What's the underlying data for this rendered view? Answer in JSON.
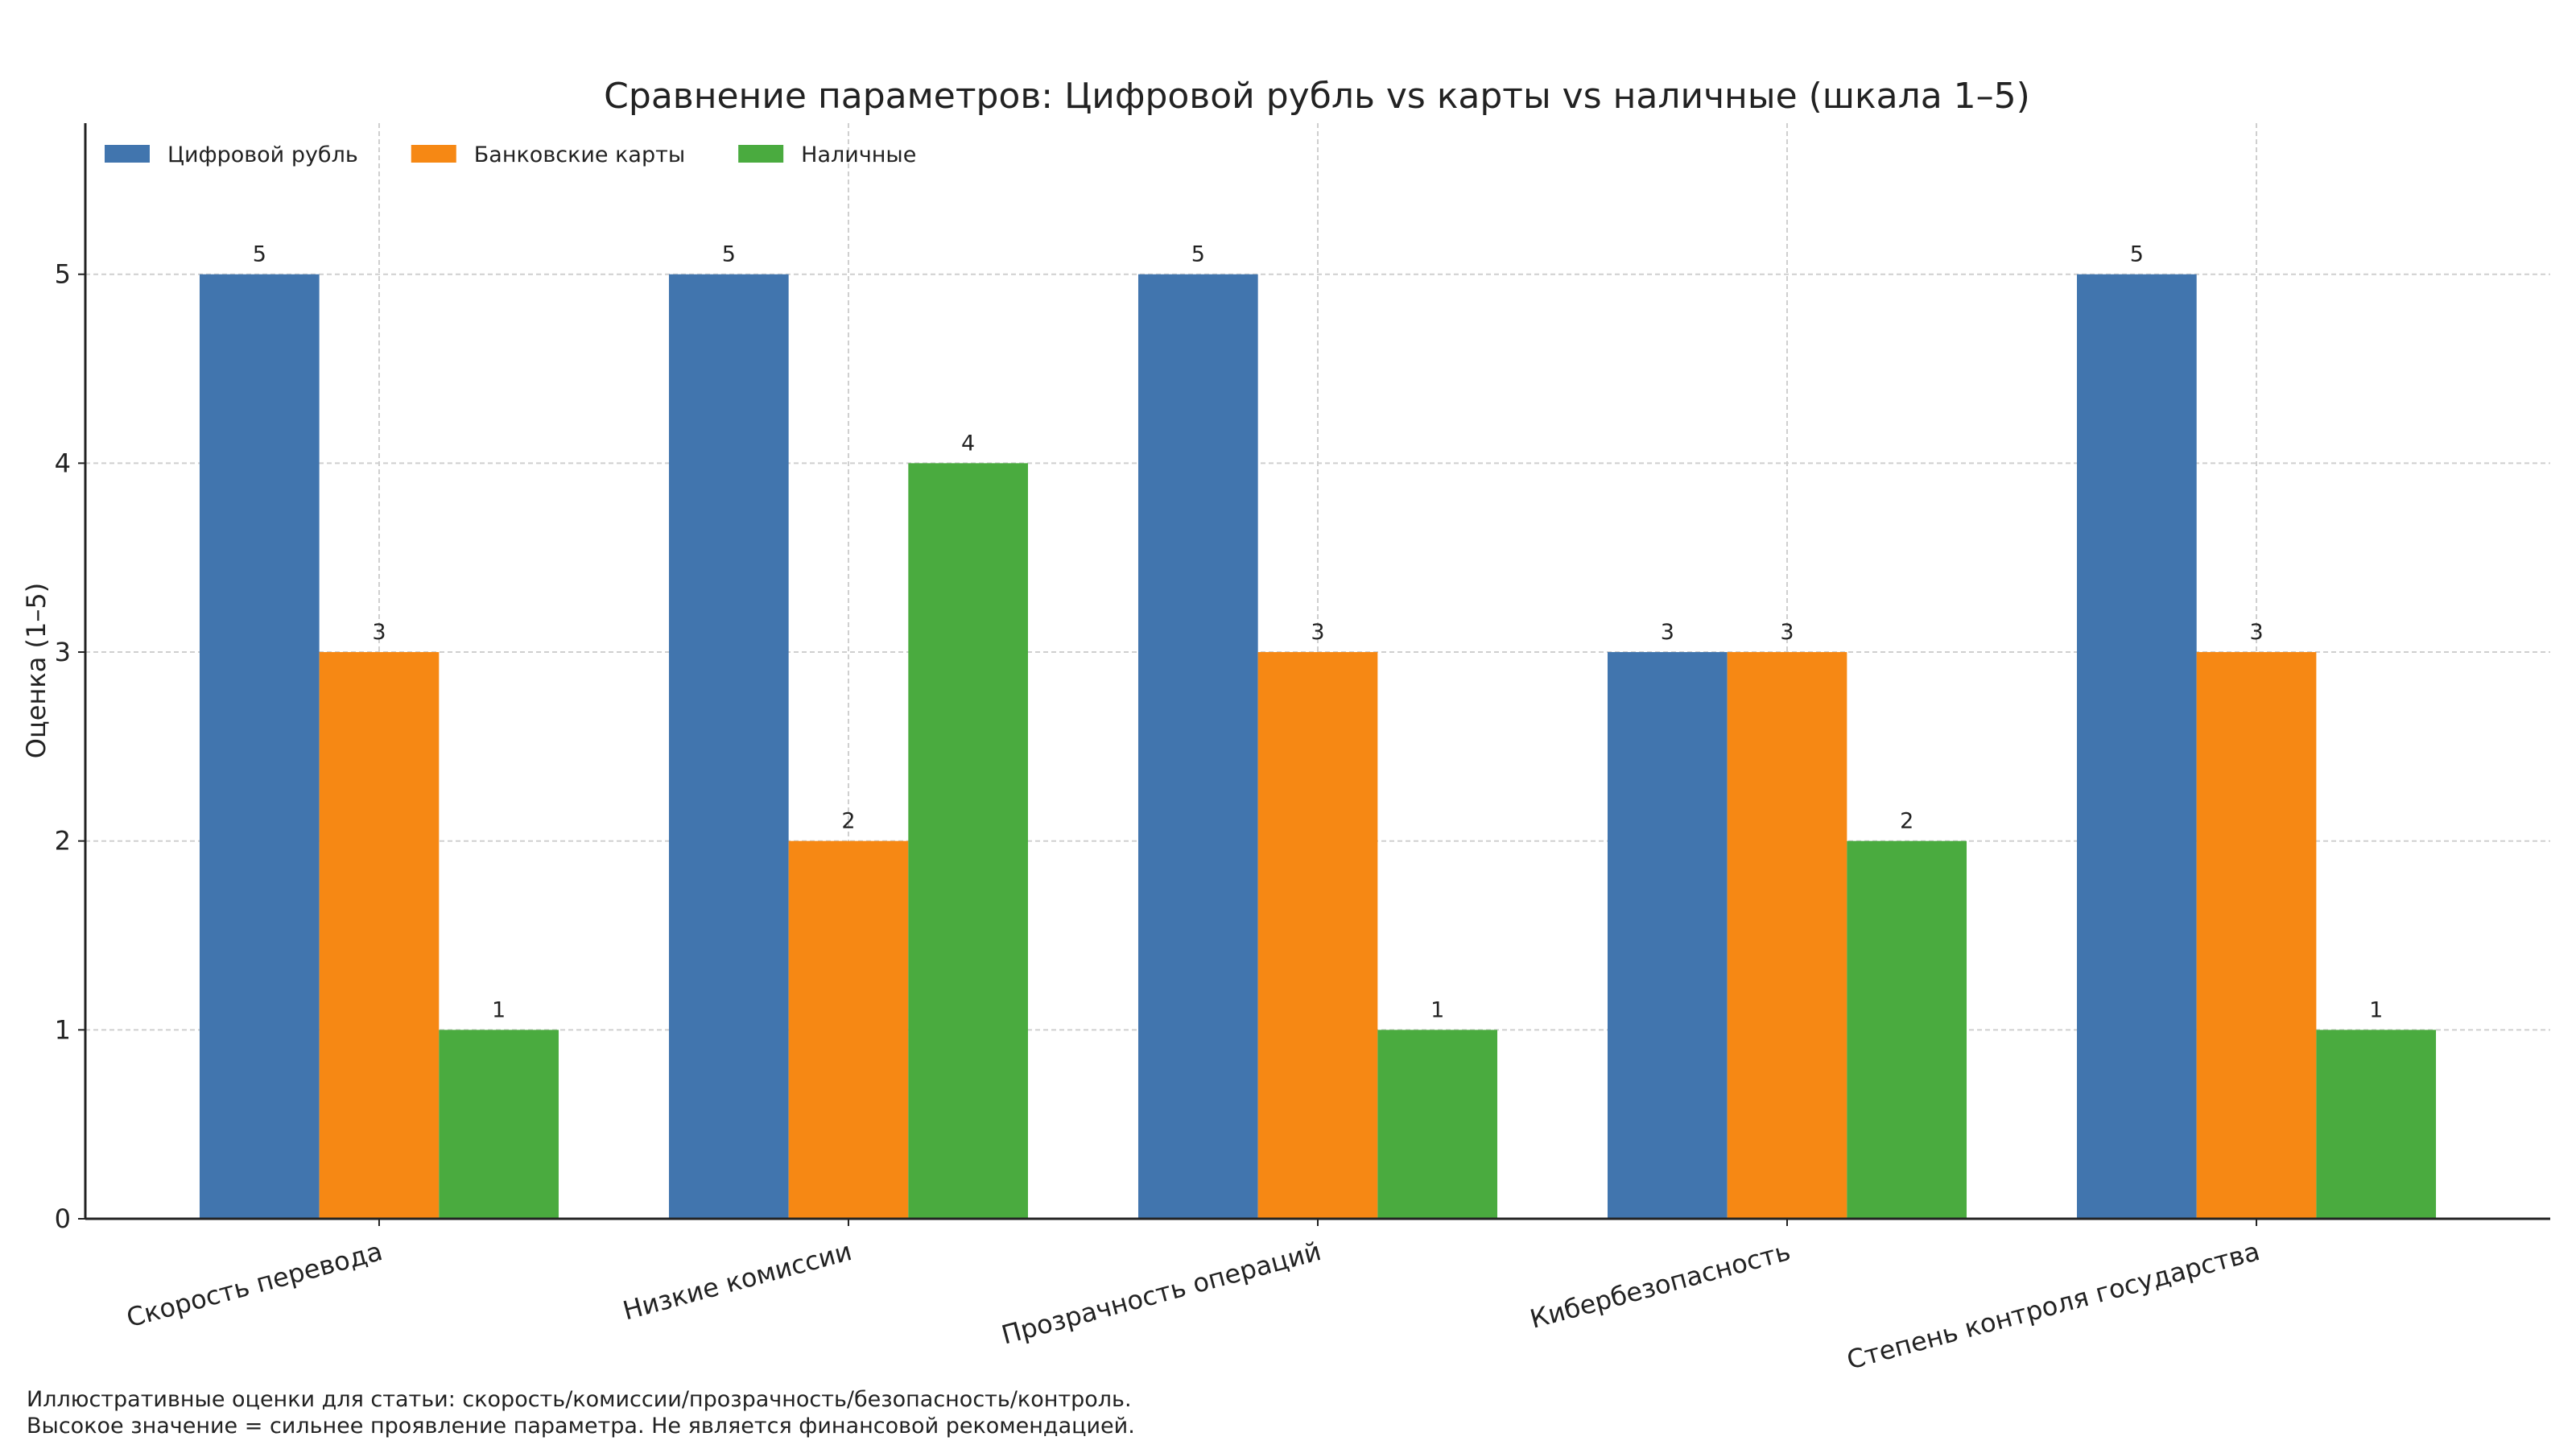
{
  "chart_data": {
    "type": "bar",
    "title": "Сравнение параметров: Цифровой рубль vs карты vs наличные (шкала 1–5)",
    "xlabel": "",
    "ylabel": "Оценка (1–5)",
    "categories": [
      "Скорость перевода",
      "Низкие комиссии",
      "Прозрачность операций",
      "Кибербезопасность",
      "Степень контроля государства"
    ],
    "series": [
      {
        "name": "Цифровой рубль",
        "values": [
          5,
          5,
          5,
          3,
          5
        ],
        "color": "#4175ae"
      },
      {
        "name": "Банковские карты",
        "values": [
          3,
          2,
          3,
          3,
          3
        ],
        "color": "#f68814"
      },
      {
        "name": "Наличные",
        "values": [
          1,
          4,
          1,
          2,
          1
        ],
        "color": "#4aab3f"
      }
    ],
    "ylim": [
      0,
      5.8
    ],
    "yticks": [
      "0",
      "1",
      "2",
      "3",
      "4",
      "5"
    ],
    "grid": true,
    "legend_position": "top-left",
    "data_labels": true
  },
  "footer": {
    "line1": "Иллюстративные оценки для статьи: скорость/комиссии/прозрачность/безопасность/контроль.",
    "line2": "Высокое значение = сильнее проявление параметра. Не является финансовой рекомендацией."
  }
}
